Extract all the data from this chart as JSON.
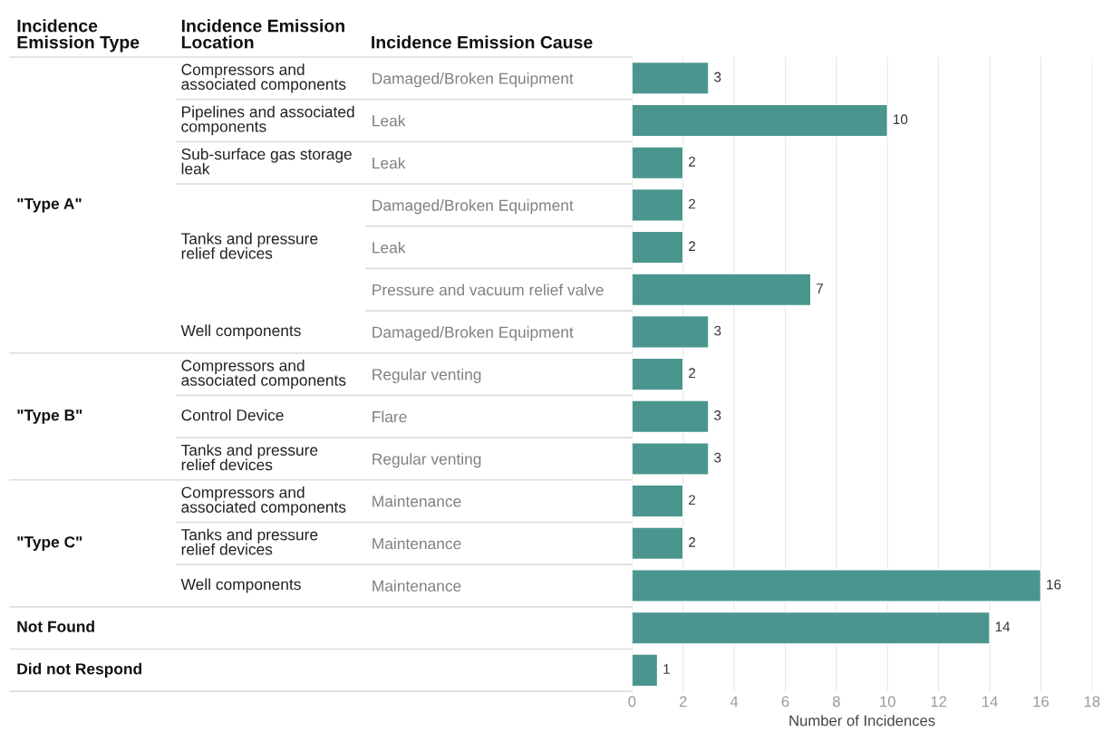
{
  "chart_data": {
    "type": "bar",
    "orientation": "horizontal",
    "xlabel": "Number of Incidences",
    "categories": [
      "Damaged/Broken Equipment",
      "Leak",
      "Leak",
      "Damaged/Broken Equipment",
      "Leak",
      "Pressure and vacuum relief valve",
      "Damaged/Broken Equipment",
      "Regular venting",
      "Flare",
      "Regular venting",
      "Maintenance",
      "Maintenance",
      "Maintenance",
      null,
      null
    ],
    "values": [
      3,
      10,
      2,
      2,
      2,
      7,
      3,
      2,
      3,
      3,
      2,
      2,
      16,
      14,
      1
    ],
    "color": "#4a968f",
    "data_labels": true,
    "xlim": [
      0,
      18
    ],
    "xticks": [
      0,
      2,
      4,
      6,
      8,
      10,
      12,
      14,
      16,
      18
    ],
    "grid": "x",
    "legend": false,
    "annotations": [
      "Incidence Emission Type",
      "Incidence Emission Location",
      "Incidence Emission Cause",
      "\"Type A\"",
      "\"Type B\"",
      "\"Type C\"",
      "Not Found",
      "Did not Respond",
      "Compressors and associated components",
      "Pipelines and associated components",
      "Sub-surface gas storage leak",
      "Tanks and pressure relief devices",
      "Well components",
      "Compressors and associated components",
      "Control Device",
      "Tanks and pressure relief devices",
      "Compressors and associated components",
      "Tanks and pressure relief devices",
      "Well components"
    ]
  }
}
